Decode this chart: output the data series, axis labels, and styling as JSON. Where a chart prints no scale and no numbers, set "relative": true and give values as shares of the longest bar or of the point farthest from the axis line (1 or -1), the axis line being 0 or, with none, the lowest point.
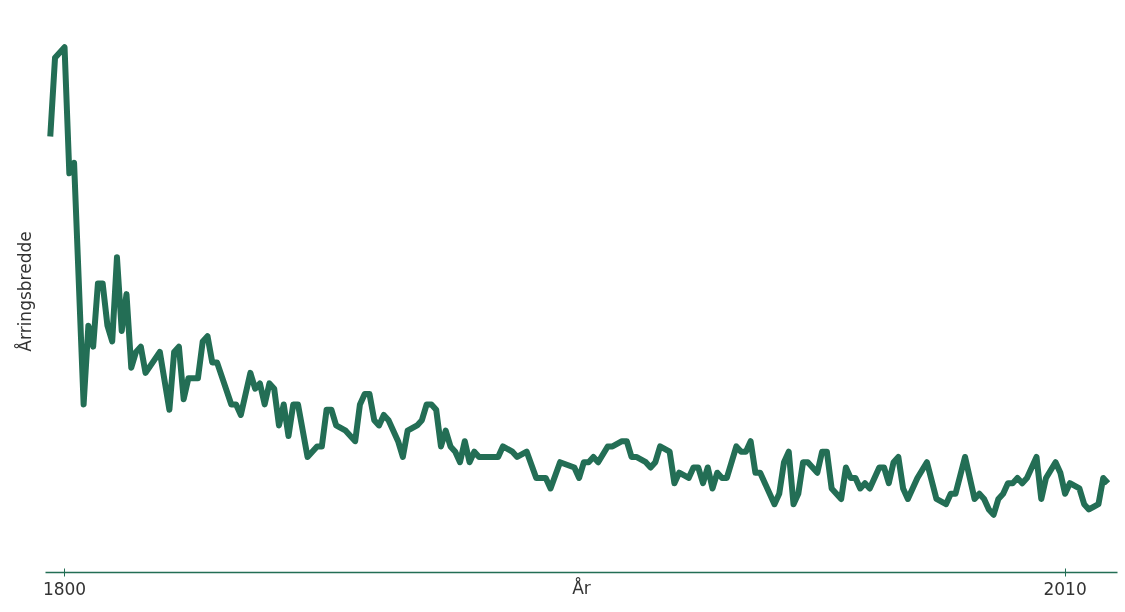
{
  "chart_data": {
    "type": "line",
    "xlabel": "År",
    "ylabel": "Årringsbredde",
    "relative": true,
    "grid": false,
    "xlim": [
      1796,
      2021
    ],
    "xticks": [
      1800,
      2010
    ],
    "series": [
      {
        "color": "#236e55",
        "x": [
          1797,
          1798,
          1800,
          1801,
          1802,
          1804,
          1805,
          1806,
          1807,
          1808,
          1809,
          1810,
          1811,
          1812,
          1813,
          1814,
          1815,
          1816,
          1817,
          1820,
          1822,
          1823,
          1824,
          1825,
          1826,
          1828,
          1829,
          1830,
          1831,
          1832,
          1835,
          1836,
          1837,
          1839,
          1840,
          1841,
          1842,
          1843,
          1844,
          1845,
          1846,
          1847,
          1848,
          1849,
          1851,
          1853,
          1854,
          1855,
          1856,
          1857,
          1859,
          1861,
          1862,
          1863,
          1864,
          1865,
          1866,
          1867,
          1868,
          1870,
          1871,
          1872,
          1874,
          1875,
          1876,
          1877,
          1878,
          1879,
          1880,
          1881,
          1882,
          1883,
          1884,
          1885,
          1886,
          1887,
          1889,
          1890,
          1891,
          1892,
          1894,
          1895,
          1897,
          1899,
          1900,
          1901,
          1902,
          1904,
          1907,
          1908,
          1909,
          1910,
          1911,
          1912,
          1914,
          1915,
          1917,
          1918,
          1919,
          1920,
          1922,
          1923,
          1924,
          1925,
          1927,
          1928,
          1929,
          1931,
          1932,
          1933,
          1934,
          1935,
          1936,
          1937,
          1938,
          1939,
          1941,
          1942,
          1943,
          1944,
          1945,
          1946,
          1949,
          1950,
          1951,
          1952,
          1953,
          1954,
          1955,
          1956,
          1958,
          1959,
          1960,
          1961,
          1963,
          1964,
          1965,
          1966,
          1967,
          1968,
          1969,
          1970,
          1971,
          1972,
          1973,
          1974,
          1975,
          1976,
          1977,
          1978,
          1979,
          1981,
          1983,
          1985,
          1986,
          1987,
          1989,
          1991,
          1992,
          1993,
          1994,
          1995,
          1996,
          1997,
          1998,
          1999,
          2000,
          2001,
          2002,
          2004,
          2005,
          2006,
          2008,
          2009,
          2010,
          2011,
          2013,
          2014,
          2015,
          2017,
          2018,
          2019
        ],
        "values": [
          0.83,
          0.98,
          1.0,
          0.76,
          0.78,
          0.32,
          0.47,
          0.43,
          0.55,
          0.55,
          0.47,
          0.44,
          0.6,
          0.46,
          0.53,
          0.39,
          0.42,
          0.43,
          0.38,
          0.42,
          0.31,
          0.42,
          0.43,
          0.33,
          0.37,
          0.37,
          0.44,
          0.45,
          0.4,
          0.4,
          0.32,
          0.32,
          0.3,
          0.38,
          0.35,
          0.36,
          0.32,
          0.36,
          0.35,
          0.28,
          0.32,
          0.26,
          0.32,
          0.32,
          0.22,
          0.24,
          0.24,
          0.31,
          0.31,
          0.28,
          0.27,
          0.25,
          0.32,
          0.34,
          0.34,
          0.29,
          0.28,
          0.3,
          0.29,
          0.25,
          0.22,
          0.27,
          0.28,
          0.29,
          0.32,
          0.32,
          0.31,
          0.24,
          0.27,
          0.24,
          0.23,
          0.21,
          0.25,
          0.21,
          0.23,
          0.22,
          0.22,
          0.22,
          0.22,
          0.24,
          0.23,
          0.22,
          0.23,
          0.18,
          0.18,
          0.18,
          0.16,
          0.21,
          0.2,
          0.18,
          0.21,
          0.21,
          0.22,
          0.21,
          0.24,
          0.24,
          0.25,
          0.25,
          0.22,
          0.22,
          0.21,
          0.2,
          0.21,
          0.24,
          0.23,
          0.17,
          0.19,
          0.18,
          0.2,
          0.2,
          0.17,
          0.2,
          0.16,
          0.19,
          0.18,
          0.18,
          0.24,
          0.23,
          0.23,
          0.25,
          0.19,
          0.19,
          0.13,
          0.15,
          0.21,
          0.23,
          0.13,
          0.15,
          0.21,
          0.21,
          0.19,
          0.23,
          0.23,
          0.16,
          0.14,
          0.2,
          0.18,
          0.18,
          0.16,
          0.17,
          0.16,
          0.18,
          0.2,
          0.2,
          0.17,
          0.21,
          0.22,
          0.16,
          0.14,
          0.16,
          0.18,
          0.21,
          0.14,
          0.13,
          0.15,
          0.15,
          0.22,
          0.14,
          0.15,
          0.14,
          0.12,
          0.11,
          0.14,
          0.15,
          0.17,
          0.17,
          0.18,
          0.17,
          0.18,
          0.22,
          0.14,
          0.18,
          0.21,
          0.19,
          0.15,
          0.17,
          0.16,
          0.13,
          0.12,
          0.13,
          0.18,
          0.17
        ]
      }
    ]
  }
}
